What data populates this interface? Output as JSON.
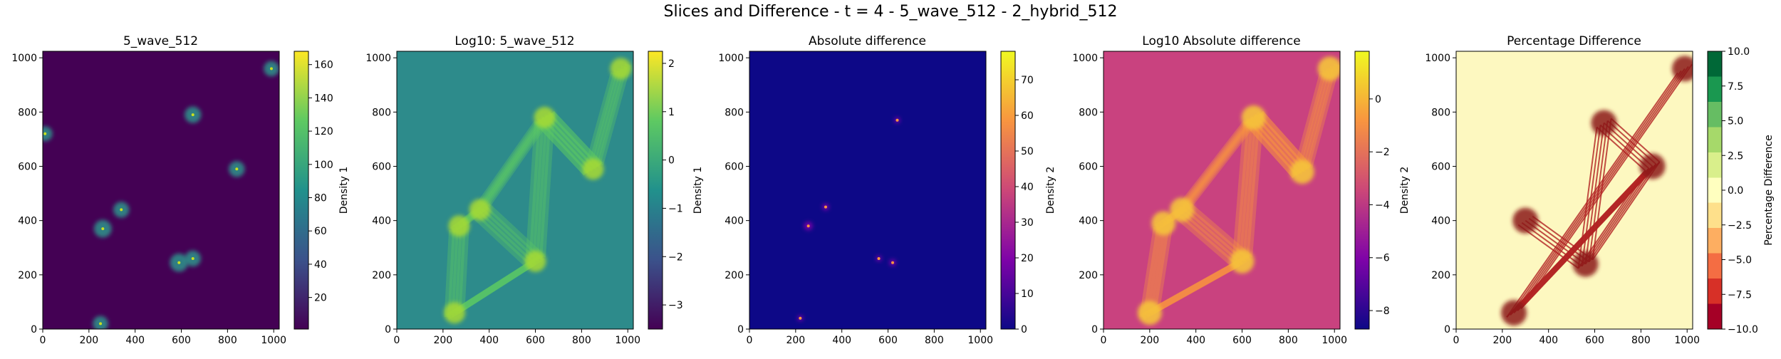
{
  "figure": {
    "title": "Slices and Difference - t = 4 - 5_wave_512 - 2_hybrid_512"
  },
  "chart_data": [
    {
      "type": "heatmap",
      "title": "5_wave_512",
      "colormap": "viridis",
      "background": "#440154",
      "xlim": [
        0,
        1024
      ],
      "ylim": [
        0,
        1024
      ],
      "xticks": [
        0,
        200,
        400,
        600,
        800,
        1000
      ],
      "yticks": [
        0,
        200,
        400,
        600,
        800,
        1000
      ],
      "colorbar": {
        "label": "Density 1",
        "range": [
          1,
          168
        ],
        "ticks": [
          20,
          40,
          60,
          80,
          100,
          120,
          140,
          160
        ]
      },
      "features": [
        {
          "x": 260,
          "y": 370,
          "v": 0.55
        },
        {
          "x": 340,
          "y": 440,
          "v": 0.4
        },
        {
          "x": 590,
          "y": 245,
          "v": 0.6
        },
        {
          "x": 650,
          "y": 260,
          "v": 0.4
        },
        {
          "x": 650,
          "y": 790,
          "v": 0.45
        },
        {
          "x": 840,
          "y": 590,
          "v": 0.4
        },
        {
          "x": 990,
          "y": 960,
          "v": 0.35
        },
        {
          "x": 10,
          "y": 720,
          "v": 0.3
        },
        {
          "x": 250,
          "y": 20,
          "v": 0.35
        }
      ]
    },
    {
      "type": "heatmap",
      "title": "Log10: 5_wave_512",
      "colormap": "viridis",
      "background": "#2d8b8b",
      "xlim": [
        0,
        1024
      ],
      "ylim": [
        0,
        1024
      ],
      "xticks": [
        0,
        200,
        400,
        600,
        800,
        1000
      ],
      "yticks": [
        0,
        200,
        400,
        600,
        800,
        1000
      ],
      "colorbar": {
        "label": "Density 1",
        "range": [
          -3.5,
          2.25
        ],
        "ticks": [
          -3,
          -2,
          -1,
          0,
          1,
          2
        ]
      },
      "features": [
        {
          "x": 270,
          "y": 380,
          "v": 1
        },
        {
          "x": 360,
          "y": 440,
          "v": 1
        },
        {
          "x": 600,
          "y": 250,
          "v": 1
        },
        {
          "x": 640,
          "y": 780,
          "v": 1
        },
        {
          "x": 850,
          "y": 590,
          "v": 1
        },
        {
          "x": 970,
          "y": 960,
          "v": 1
        },
        {
          "x": 250,
          "y": 60,
          "v": 1
        }
      ]
    },
    {
      "type": "heatmap",
      "title": "Absolute difference",
      "colormap": "plasma",
      "background": "#0d0887",
      "xlim": [
        0,
        1024
      ],
      "ylim": [
        0,
        1024
      ],
      "xticks": [
        0,
        200,
        400,
        600,
        800,
        1000
      ],
      "yticks": [
        0,
        200,
        400,
        600,
        800,
        1000
      ],
      "colorbar": {
        "label": "Density 2",
        "range": [
          0,
          78
        ],
        "ticks": [
          0,
          10,
          20,
          30,
          40,
          50,
          60,
          70
        ]
      },
      "features": [
        {
          "x": 255,
          "y": 380,
          "v": 0.6
        },
        {
          "x": 330,
          "y": 450,
          "v": 0.35
        },
        {
          "x": 620,
          "y": 245,
          "v": 0.35
        },
        {
          "x": 560,
          "y": 260,
          "v": 0.2
        },
        {
          "x": 640,
          "y": 770,
          "v": 0.2
        },
        {
          "x": 220,
          "y": 40,
          "v": 0.2
        }
      ]
    },
    {
      "type": "heatmap",
      "title": "Log10 Absolute difference",
      "colormap": "plasma",
      "background": "#c9427f",
      "xlim": [
        0,
        1024
      ],
      "ylim": [
        0,
        1024
      ],
      "xticks": [
        0,
        200,
        400,
        600,
        800,
        1000
      ],
      "yticks": [
        0,
        200,
        400,
        600,
        800,
        1000
      ],
      "colorbar": {
        "label": "Density 2",
        "range": [
          -8.7,
          1.8
        ],
        "ticks": [
          -8,
          -6,
          -4,
          -2,
          0
        ]
      },
      "features": [
        {
          "x": 260,
          "y": 390,
          "v": 1
        },
        {
          "x": 340,
          "y": 440,
          "v": 1
        },
        {
          "x": 600,
          "y": 250,
          "v": 1
        },
        {
          "x": 650,
          "y": 780,
          "v": 1
        },
        {
          "x": 860,
          "y": 580,
          "v": 1
        },
        {
          "x": 980,
          "y": 960,
          "v": 1
        },
        {
          "x": 200,
          "y": 60,
          "v": 1
        }
      ]
    },
    {
      "type": "heatmap",
      "title": "Percentage Difference",
      "colormap": "RdYlGn (discrete)",
      "background": "#fdf8c0",
      "xlim": [
        0,
        1024
      ],
      "ylim": [
        0,
        1024
      ],
      "xticks": [
        0,
        200,
        400,
        600,
        800,
        1000
      ],
      "yticks": [
        0,
        200,
        400,
        600,
        800,
        1000
      ],
      "colorbar": {
        "label": "Percentage Difference",
        "range": [
          -10,
          10
        ],
        "ticks": [
          -10.0,
          -7.5,
          -5.0,
          -2.5,
          0.0,
          2.5,
          5.0,
          7.5,
          10.0
        ],
        "ticklabels": [
          "−10.0",
          "−7.5",
          "−5.0",
          "−2.5",
          "0.0",
          "2.5",
          "5.0",
          "7.5",
          "10.0"
        ]
      },
      "features": [
        {
          "x": 300,
          "y": 400,
          "v": 1
        },
        {
          "x": 560,
          "y": 240,
          "v": 1
        },
        {
          "x": 640,
          "y": 760,
          "v": 1
        },
        {
          "x": 850,
          "y": 600,
          "v": 1
        },
        {
          "x": 250,
          "y": 60,
          "v": 1
        },
        {
          "x": 990,
          "y": 960,
          "v": 1
        }
      ]
    }
  ]
}
